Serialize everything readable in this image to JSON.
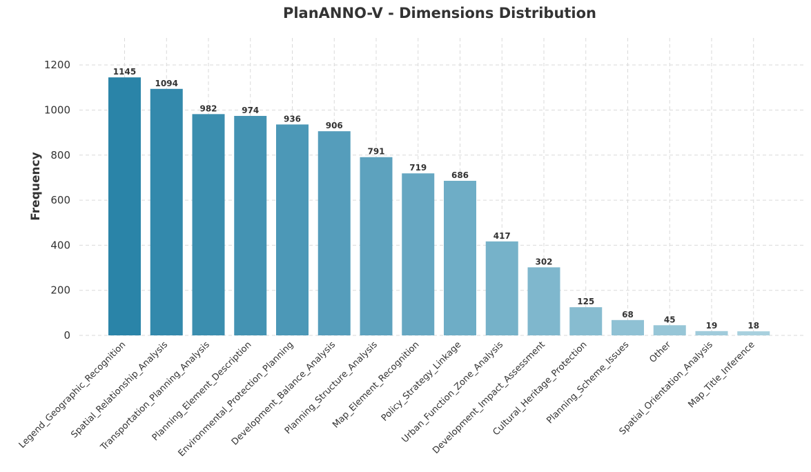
{
  "chart_data": {
    "type": "bar",
    "title": "PlanANNO-V - Dimensions Distribution",
    "xlabel": "",
    "ylabel": "Frequency",
    "ylim": [
      0,
      1320
    ],
    "yticks": [
      0,
      200,
      400,
      600,
      800,
      1000,
      1200
    ],
    "grid": true,
    "categories": [
      "Legend_Geographic_Recognition",
      "Spatial_Relationship_Analysis",
      "Transportation_Planning_Analysis",
      "Planning_Element_Description",
      "Environmental_Protection_Planning",
      "Development_Balance_Analysis",
      "Planning_Structure_Analysis",
      "Map_Element_Recognition",
      "Policy_Strategy_Linkage",
      "Urban_Function_Zone_Analysis",
      "Development_Impact_Assessment",
      "Cultural_Heritage_Protection",
      "Planning_Scheme_Issues",
      "Other",
      "Spatial_Orientation_Analysis",
      "Map_Title_Inference"
    ],
    "values": [
      1145,
      1094,
      982,
      974,
      936,
      906,
      791,
      719,
      686,
      417,
      302,
      125,
      68,
      45,
      19,
      18
    ],
    "colors": {
      "bar_dark": "#2a84a8",
      "bar_mid": "#6aaac4",
      "bar_light": "#a8d0de",
      "text": "#333333",
      "grid": "#d9d9d9"
    }
  }
}
